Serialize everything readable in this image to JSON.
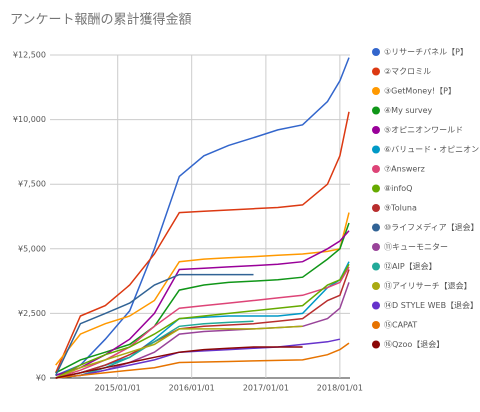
{
  "chart_data": {
    "type": "line",
    "title": "アンケート報酬の累計獲得金額",
    "x": [
      "2014/03/01",
      "2014/07/01",
      "2014/11/01",
      "2015/03/01",
      "2015/07/01",
      "2015/11/01",
      "2016/03/01",
      "2016/07/01",
      "2016/11/01",
      "2017/03/01",
      "2017/07/01",
      "2017/11/01",
      "2018/01/01",
      "2018/02/15"
    ],
    "xlim": [
      "2014/02/01",
      "2018/02/20"
    ],
    "xticks": [
      "2015/01/01",
      "2016/01/01",
      "2017/01/01",
      "2018/01/01"
    ],
    "ylim": [
      0,
      12500
    ],
    "yticks": [
      {
        "value": 0,
        "label": "¥0"
      },
      {
        "value": 2500,
        "label": "¥2,500"
      },
      {
        "value": 5000,
        "label": "¥5,000"
      },
      {
        "value": 7500,
        "label": "¥7,500"
      },
      {
        "value": 10000,
        "label": "¥10,000"
      },
      {
        "value": 12500,
        "label": "¥12,500"
      }
    ],
    "grid": true,
    "legend": "right",
    "series": [
      {
        "name": "①リサーチパネル【P】",
        "color": "#3366cc",
        "values": [
          100,
          500,
          1500,
          2600,
          5000,
          7800,
          8600,
          9000,
          9300,
          9600,
          9800,
          10700,
          11500,
          12400
        ]
      },
      {
        "name": "②マクロミル",
        "color": "#dc3912",
        "values": [
          200,
          2400,
          2800,
          3600,
          4800,
          6400,
          6450,
          6500,
          6550,
          6600,
          6700,
          7500,
          8600,
          10300
        ]
      },
      {
        "name": "③GetMoney!【P】",
        "color": "#ff9900",
        "values": [
          500,
          1700,
          2100,
          2400,
          3000,
          4500,
          4600,
          4650,
          4700,
          4750,
          4800,
          4900,
          5000,
          6400
        ]
      },
      {
        "name": "④My survey",
        "color": "#109618",
        "values": [
          200,
          700,
          1000,
          1300,
          2000,
          3400,
          3600,
          3700,
          3750,
          3800,
          3900,
          4600,
          5000,
          6000
        ]
      },
      {
        "name": "⑤オピニオンワールド",
        "color": "#990099",
        "values": [
          100,
          400,
          900,
          1500,
          2500,
          4200,
          4250,
          4300,
          4350,
          4400,
          4500,
          5000,
          5300,
          5700
        ]
      },
      {
        "name": "⑥バリュード・オピニオン",
        "color": "#0099c6",
        "values": [
          0,
          200,
          500,
          800,
          1500,
          2300,
          2350,
          2400,
          2400,
          2400,
          2500,
          3500,
          3800,
          4500
        ]
      },
      {
        "name": "⑦Answerz",
        "color": "#dd4477",
        "values": [
          0,
          300,
          700,
          1200,
          2000,
          2700,
          2800,
          2900,
          3000,
          3100,
          3200,
          3500,
          3700,
          4300
        ]
      },
      {
        "name": "⑧infoQ",
        "color": "#66aa00",
        "values": [
          0,
          500,
          900,
          1200,
          1700,
          2300,
          2400,
          2500,
          2600,
          2700,
          2800,
          3600,
          3800,
          4400
        ]
      },
      {
        "name": "⑨Toluna",
        "color": "#b82e2e",
        "values": [
          0,
          200,
          500,
          900,
          1400,
          1900,
          2000,
          2050,
          2100,
          2200,
          2300,
          3000,
          3200,
          4200
        ]
      },
      {
        "name": "⑩ライフメディア【退会】",
        "color": "#316395",
        "values": [
          100,
          2100,
          2500,
          2900,
          3600,
          4000,
          4000,
          4000,
          4000,
          null,
          null,
          null,
          null,
          null
        ]
      },
      {
        "name": "⑪キューモニター",
        "color": "#994499",
        "values": [
          0,
          100,
          300,
          600,
          1000,
          1700,
          1800,
          1850,
          1900,
          1950,
          2000,
          2300,
          2700,
          3700
        ]
      },
      {
        "name": "⑫AIP【退会】",
        "color": "#22aa99",
        "values": [
          0,
          100,
          400,
          800,
          1400,
          2000,
          2100,
          2150,
          2200,
          null,
          null,
          null,
          null,
          null
        ]
      },
      {
        "name": "⑬アイリサーチ【退会】",
        "color": "#aaaa11",
        "values": [
          0,
          400,
          700,
          1000,
          1300,
          1900,
          1900,
          1900,
          1900,
          1950,
          2000,
          null,
          null,
          null
        ]
      },
      {
        "name": "⑭D STYLE WEB【退会】",
        "color": "#6633cc",
        "values": [
          0,
          100,
          300,
          500,
          700,
          1000,
          1050,
          1100,
          1150,
          1200,
          1300,
          1400,
          1500,
          null
        ]
      },
      {
        "name": "⑮CAPAT",
        "color": "#e67300",
        "values": [
          0,
          100,
          200,
          300,
          400,
          600,
          620,
          640,
          660,
          680,
          700,
          900,
          1100,
          1350
        ]
      },
      {
        "name": "⑯Qzoo【退会】",
        "color": "#8b0707",
        "values": [
          0,
          200,
          400,
          600,
          800,
          1000,
          1100,
          1150,
          1200,
          1200,
          1200,
          null,
          null,
          null
        ]
      }
    ]
  }
}
